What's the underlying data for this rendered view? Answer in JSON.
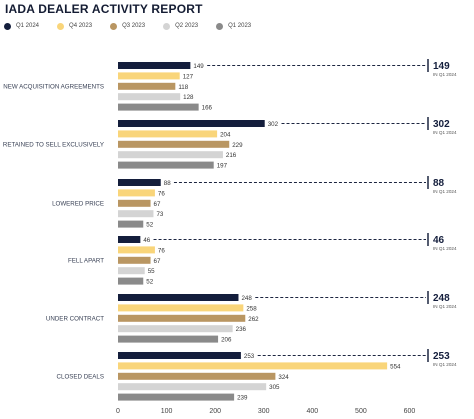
{
  "title": "IADA DEALER ACTIVITY REPORT",
  "colors": {
    "Q1 2024": "#141e3c",
    "Q4 2023": "#f9d57a",
    "Q3 2023": "#b99662",
    "Q2 2023": "#d4d4d4",
    "Q1 2023": "#8a8a8a"
  },
  "chart_data": {
    "type": "bar",
    "orientation": "horizontal",
    "title": "IADA DEALER ACTIVITY REPORT",
    "xlim": [
      0,
      600
    ],
    "x_ticks": [
      "0",
      "100",
      "200",
      "300",
      "400",
      "500",
      "600"
    ],
    "legend_position": "top-left",
    "grid": false,
    "categories": [
      "NEW ACQUISITION AGREEMENTS",
      "RETAINED TO SELL EXCLUSIVELY",
      "LOWERED PRICE",
      "FELL APART",
      "UNDER CONTRACT",
      "CLOSED DEALS"
    ],
    "series": [
      {
        "name": "Q1 2024",
        "values": [
          149,
          302,
          88,
          46,
          248,
          253
        ]
      },
      {
        "name": "Q4 2023",
        "values": [
          127,
          204,
          76,
          76,
          258,
          554
        ]
      },
      {
        "name": "Q3 2023",
        "values": [
          118,
          229,
          67,
          67,
          262,
          324
        ]
      },
      {
        "name": "Q2 2023",
        "values": [
          128,
          216,
          73,
          55,
          236,
          305
        ]
      },
      {
        "name": "Q1 2023",
        "values": [
          166,
          197,
          52,
          52,
          206,
          239
        ]
      }
    ],
    "callouts": [
      {
        "value": "149",
        "label": "IN Q1 2024"
      },
      {
        "value": "302",
        "label": "IN Q1 2024"
      },
      {
        "value": "88",
        "label": "IN Q1 2024"
      },
      {
        "value": "46",
        "label": "IN Q1 2024"
      },
      {
        "value": "248",
        "label": "IN Q1 2024"
      },
      {
        "value": "253",
        "label": "IN Q1 2024"
      }
    ]
  }
}
